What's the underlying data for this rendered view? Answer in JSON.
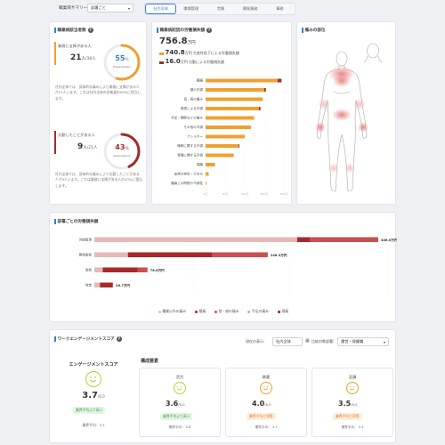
{
  "header": {
    "summary_label": "職業病サマリー：",
    "dept_select": "部署ごと",
    "tabs": [
      "社内全体",
      "職場管理",
      "営業",
      "開発業務",
      "事務"
    ]
  },
  "colors": {
    "orange": "#f0a030",
    "dark_red": "#a52a2a",
    "light_red": "#e6a8a8",
    "accent": "#3a7bd5",
    "green": "#b5cf3b"
  },
  "leading_card": {
    "title": "職業病該当者数",
    "stat1": {
      "label": "業務に支障がある人",
      "count": "21",
      "unit": "人",
      "total": "/38人",
      "percent": "55",
      "percent_unit": "%",
      "sublabel": "Presenteeism",
      "fraction": 0.55,
      "desc": "社内全体では、身体的な痛みにより業務に支障がある人が21人います。これは社内全体の従業員の55%に相当します。"
    },
    "stat2": {
      "label": "欠勤したことがある人",
      "count": "9",
      "unit": "人",
      "total": "/21人",
      "percent": "43",
      "percent_unit": "%",
      "sublabel": "Absenteeism",
      "fraction": 0.43,
      "desc": "社内全体では、身体的な痛みにより欠勤したことがある人が9人います。これは業務に支障がある人の43%に相当します。"
    }
  },
  "loss_card": {
    "title": "職業病起因の労働損失額",
    "total": "756.8",
    "total_unit": "万円",
    "row1_amount": "740.8",
    "row1_unit": "万円",
    "row1_label": "生産性低下による労働損失額",
    "row2_amount": "16.0",
    "row2_unit": "万円",
    "row2_label": "欠勤による労働損失額",
    "categories": [
      "腰痛",
      "頭の不調",
      "首・肩の痛み",
      "眼表による不調",
      "手足・関節などの痛み",
      "その他の不調",
      "アレルギー",
      "睡眠に関する不調",
      "胃腸に関する不調",
      "頭痛",
      "皮膚の病気・かゆみ",
      "腫瘍上の問題や不調性"
    ],
    "orange_values": [
      92,
      75,
      73,
      68,
      62,
      58,
      50,
      42,
      36,
      12,
      4,
      1
    ],
    "red_values": [
      5,
      2,
      0,
      2,
      0,
      0,
      0,
      1,
      0,
      0,
      0,
      0
    ],
    "xlim": [
      0,
      100
    ],
    "grid_ticks": [
      "0万",
      "50万",
      "100万",
      "150万",
      "200万"
    ]
  },
  "pain_card": {
    "title": "痛みの部位"
  },
  "dept_card": {
    "title": "部署ごとの労働損失額",
    "departments": [
      "労働管理",
      "開発業務",
      "事務",
      "営業"
    ],
    "totals": [
      "406.0万円",
      "248.3万円",
      "76.6万円",
      "26.7万円"
    ],
    "total_values": [
      406.0,
      248.3,
      76.6,
      26.7
    ],
    "segments": [
      {
        "name": "職業病以外の痛み",
        "color": "#e6b8b8",
        "values": [
          290,
          48,
          12,
          8
        ]
      },
      {
        "name": "腰痛",
        "color": "#a52a2a",
        "values": [
          18,
          120,
          50,
          18
        ]
      },
      {
        "name": "首・肩の痛み",
        "color": "#c85050",
        "values": [
          98,
          80,
          14,
          0.7
        ]
      }
    ],
    "xlim": [
      0,
      420
    ],
    "legend": [
      {
        "name": "職業以外の痛み",
        "color": "#e6b8b8"
      },
      {
        "name": "腰痛",
        "color": "#a52a2a"
      },
      {
        "name": "首・肩の痛み",
        "color": "#c85050"
      },
      {
        "name": "手足の痛み",
        "color": "#e59a9a"
      },
      {
        "name": "頭痛",
        "color": "#8b2020"
      }
    ]
  },
  "engagement": {
    "title": "ワークエンゲージメントスコア",
    "display_label": "現在の表示:",
    "display_value": "社内全体",
    "compare_label": "比較対象部署:",
    "compare_value": "運営・保健職",
    "main": {
      "title": "エンゲージメントスコア",
      "score": "3.7",
      "unit": "/6.0",
      "badge": "業界平均より高い",
      "avg_label": "業界平均：",
      "avg_value": "3.3"
    },
    "components_title": "構成要素",
    "components": [
      {
        "name": "活力",
        "score": "3.6",
        "unit": "/6.0",
        "badge": "業界平均より高い",
        "avg_label": "業界平均：",
        "avg_value": "2.8",
        "tone": "green"
      },
      {
        "name": "熱意",
        "score": "4.0",
        "unit": "/6.0",
        "badge": "業界平均と同等",
        "avg_label": "業界平均：",
        "avg_value": "3.7",
        "tone": "orange"
      },
      {
        "name": "没頭",
        "score": "3.5",
        "unit": "/6.0",
        "badge": "業界平均と同等",
        "avg_label": "業界平均：",
        "avg_value": "3.3",
        "tone": "orange"
      }
    ]
  }
}
